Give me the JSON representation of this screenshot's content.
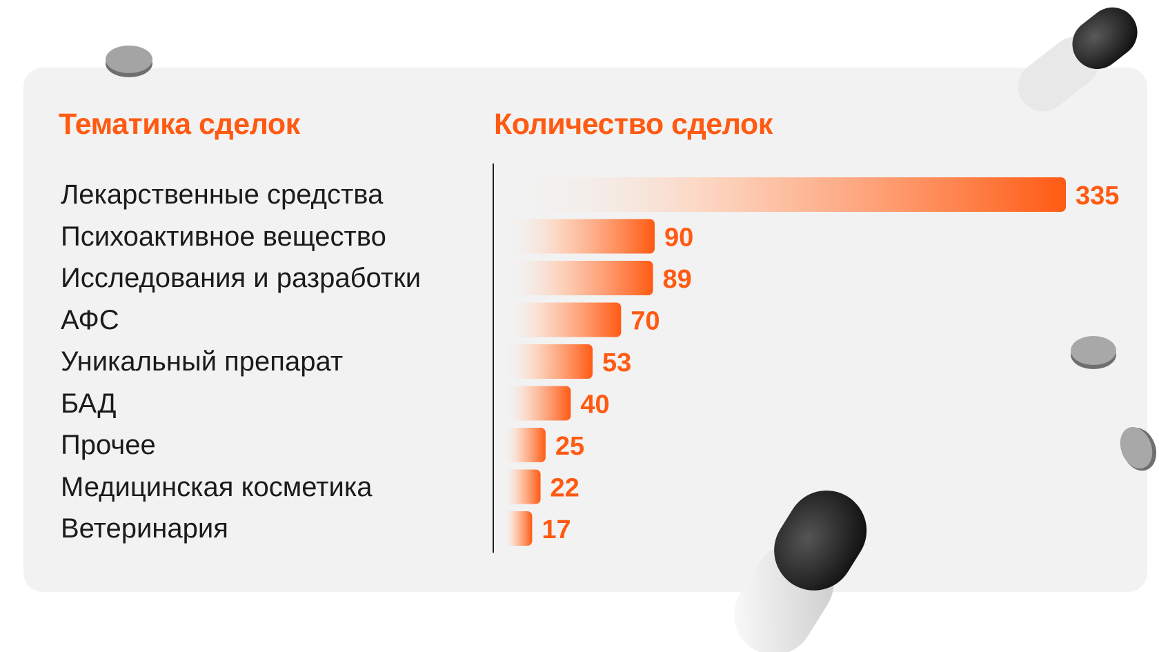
{
  "theme": {
    "accent": "#ff5a12",
    "accent_light": "#ffeadf",
    "text_dark": "#1b1b1b",
    "card_bg": "#f2f2f2"
  },
  "chart_data": {
    "type": "bar",
    "orientation": "horizontal",
    "title_categories": "Тематика сделок",
    "title_values": "Количество сделок",
    "categories": [
      "Лекарственные средства",
      "Психоактивное вещество",
      "Исследования и разработки",
      "АФС",
      "Уникальный препарат",
      "БАД",
      "Прочее",
      "Медицинская косметика",
      "Ветеринария"
    ],
    "values": [
      335,
      90,
      89,
      70,
      53,
      40,
      25,
      22,
      17
    ],
    "xlim": [
      0,
      335
    ],
    "grid": false,
    "legend": "none",
    "bar_fill": "gradient light-to-orange"
  },
  "decorations": [
    "grey-tablet-icon",
    "capsule-icon"
  ]
}
